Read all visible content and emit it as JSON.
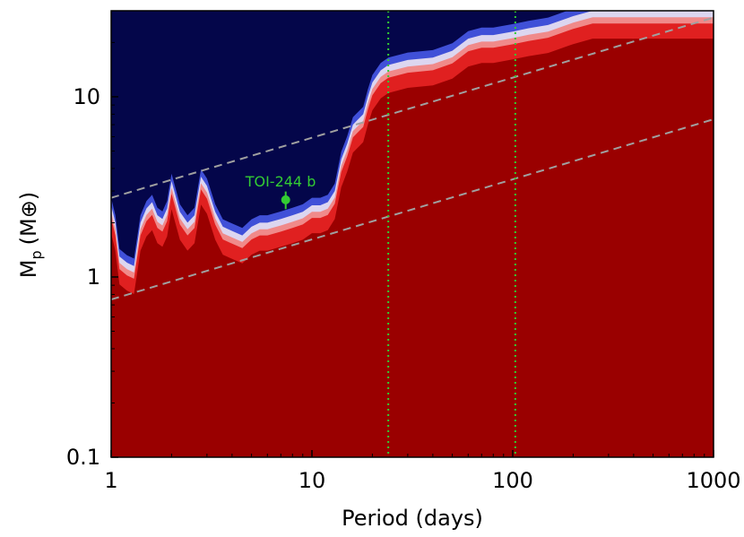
{
  "chart_data": {
    "type": "heatmap",
    "xlabel": "Period (days)",
    "ylabel_main": "M",
    "ylabel_sub": "p",
    "ylabel_unit": "(M⊕)",
    "xscale": "log",
    "yscale": "log",
    "xlim": [
      1,
      1000
    ],
    "ylim": [
      0.1,
      30
    ],
    "x_ticks": [
      {
        "value": 1,
        "label": "1"
      },
      {
        "value": 10,
        "label": "10"
      },
      {
        "value": 100,
        "label": "100"
      },
      {
        "value": 1000,
        "label": "1000"
      }
    ],
    "y_ticks": [
      {
        "value": 0.1,
        "label": "0.1"
      },
      {
        "value": 1,
        "label": "1"
      },
      {
        "value": 10,
        "label": "10"
      }
    ],
    "colors": {
      "background": "#04064a",
      "high": "#9a0000",
      "mid": "#e02020",
      "light": "#f08a8a",
      "pale": "#dcd6f0",
      "blue": "#4050d8",
      "guide": "#a0a0a0",
      "marker": "#33cc33"
    },
    "boundary": [
      [
        1.0,
        2.5
      ],
      [
        1.05,
        2.0
      ],
      [
        1.1,
        1.3
      ],
      [
        1.2,
        1.2
      ],
      [
        1.3,
        1.15
      ],
      [
        1.4,
        2.0
      ],
      [
        1.5,
        2.4
      ],
      [
        1.6,
        2.6
      ],
      [
        1.7,
        2.2
      ],
      [
        1.8,
        2.1
      ],
      [
        1.9,
        2.4
      ],
      [
        2.0,
        3.4
      ],
      [
        2.2,
        2.3
      ],
      [
        2.4,
        2.0
      ],
      [
        2.6,
        2.2
      ],
      [
        2.8,
        3.6
      ],
      [
        3.0,
        3.2
      ],
      [
        3.3,
        2.3
      ],
      [
        3.6,
        1.9
      ],
      [
        4.0,
        1.8
      ],
      [
        4.5,
        1.7
      ],
      [
        5.0,
        1.9
      ],
      [
        5.5,
        2.0
      ],
      [
        6.0,
        2.0
      ],
      [
        7.0,
        2.1
      ],
      [
        8.0,
        2.2
      ],
      [
        9.0,
        2.3
      ],
      [
        10.0,
        2.5
      ],
      [
        11.0,
        2.5
      ],
      [
        12.0,
        2.6
      ],
      [
        13.0,
        3.0
      ],
      [
        14.0,
        4.5
      ],
      [
        15.0,
        5.5
      ],
      [
        16.0,
        7.0
      ],
      [
        17.0,
        7.5
      ],
      [
        18.0,
        8.0
      ],
      [
        19.0,
        10.0
      ],
      [
        20.0,
        12.0
      ],
      [
        21.0,
        13.0
      ],
      [
        22.0,
        14.0
      ],
      [
        24.0,
        15.0
      ],
      [
        30.0,
        16.0
      ],
      [
        40.0,
        16.5
      ],
      [
        50.0,
        18.0
      ],
      [
        60.0,
        21.0
      ],
      [
        70.0,
        22.0
      ],
      [
        80.0,
        22.0
      ],
      [
        100.0,
        23.0
      ],
      [
        120.0,
        24.0
      ],
      [
        150.0,
        25.0
      ],
      [
        200.0,
        28.0
      ],
      [
        250.0,
        30.0
      ],
      [
        1000.0,
        30.0
      ]
    ],
    "guide_lines": [
      {
        "x": [
          1,
          1000
        ],
        "y": [
          2.75,
          27.5
        ]
      },
      {
        "x": [
          1,
          1000
        ],
        "y": [
          0.75,
          7.5
        ]
      }
    ],
    "vertical_lines": [
      24.0,
      103.0
    ],
    "marker": {
      "label": "TOI-244 b",
      "x": 7.4,
      "y": 2.68,
      "yerr": 0.3
    }
  }
}
